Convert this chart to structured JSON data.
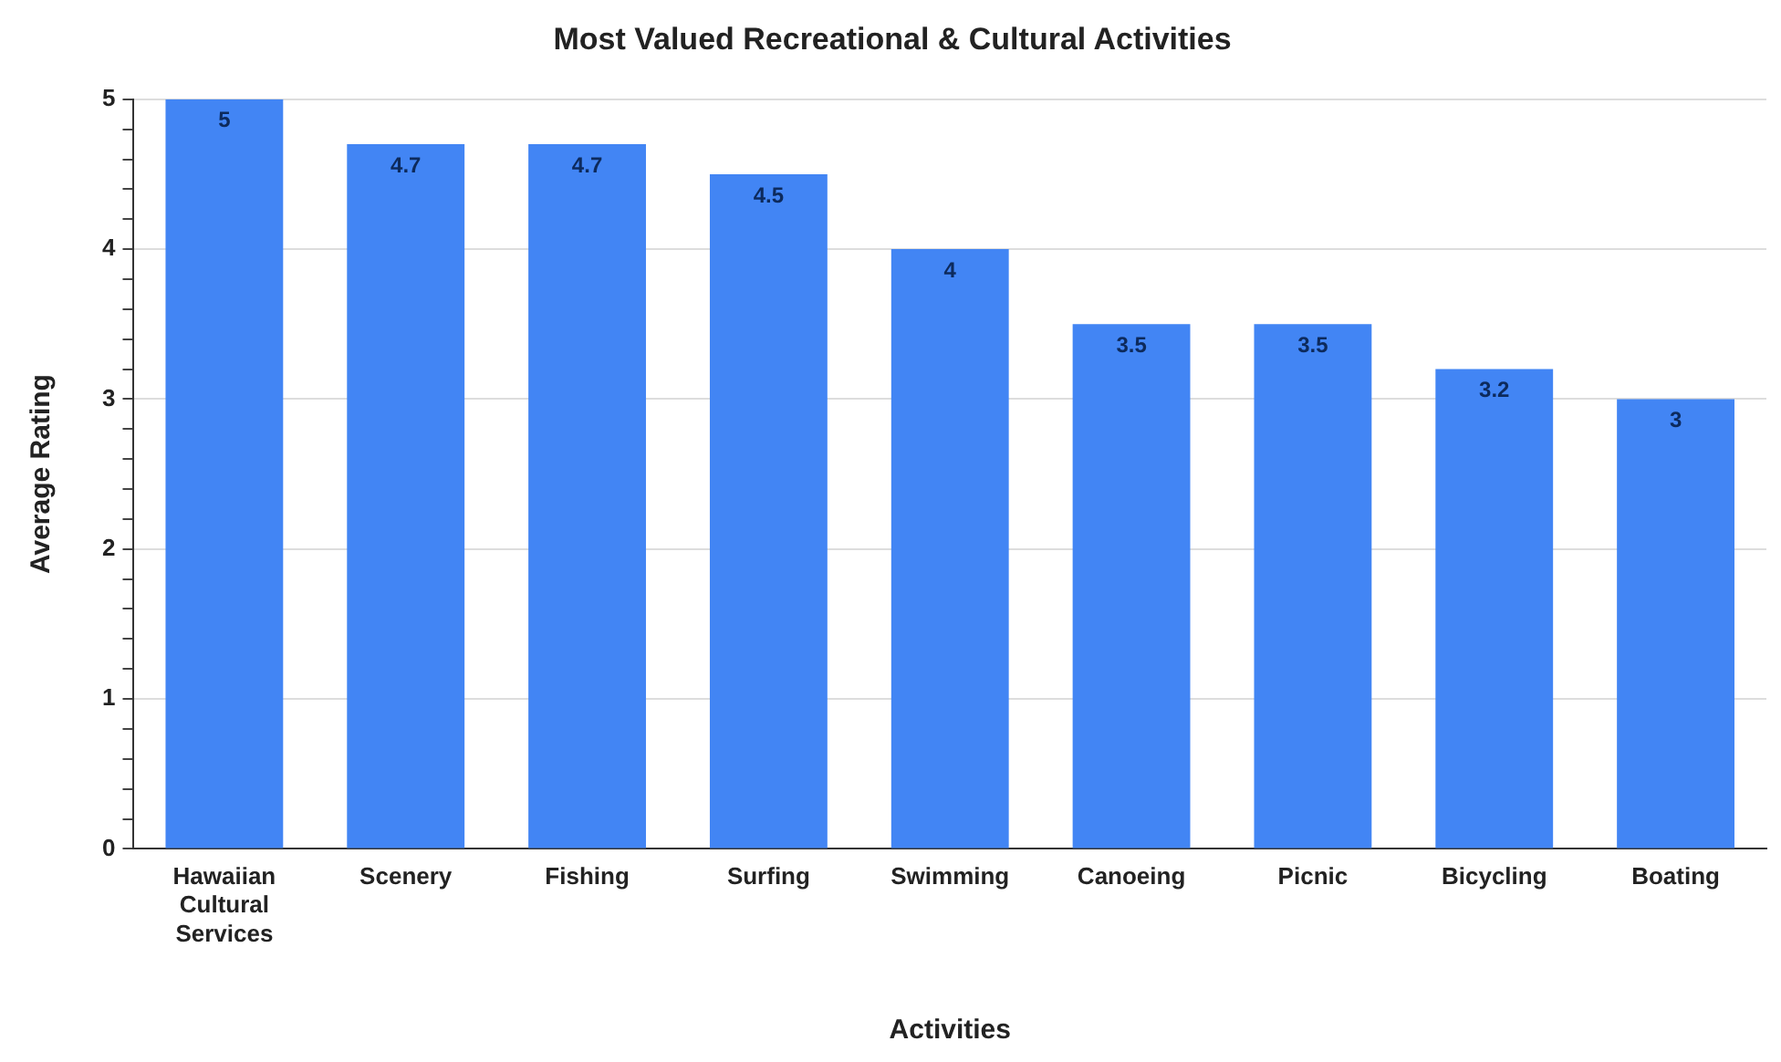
{
  "chart_data": {
    "type": "bar",
    "title": "Most Valued Recreational & Cultural Activities",
    "xlabel": "Activities",
    "ylabel": "Average Rating",
    "categories": [
      "Hawaiian Cultural Services",
      "Scenery",
      "Fishing",
      "Surfing",
      "Swimming",
      "Canoeing",
      "Picnic",
      "Bicycling",
      "Boating"
    ],
    "values": [
      5,
      4.7,
      4.7,
      4.5,
      4,
      3.5,
      3.5,
      3.2,
      3
    ],
    "color": "#4285f4",
    "ylim": [
      0,
      5
    ],
    "yticks": [
      0,
      {
        "value": 0.2,
        "label": null
      },
      {
        "value": 0.4,
        "label": null
      },
      {
        "value": 0.6,
        "label": null
      },
      {
        "value": 0.8,
        "label": null
      },
      1,
      {
        "value": 1.2,
        "label": null
      },
      {
        "value": 1.4,
        "label": null
      },
      {
        "value": 1.6,
        "label": null
      },
      {
        "value": 1.8,
        "label": null
      },
      2,
      {
        "value": 2.2,
        "label": null
      },
      {
        "value": 2.4,
        "label": null
      },
      {
        "value": 2.6,
        "label": null
      },
      {
        "value": 2.8,
        "label": null
      },
      3,
      {
        "value": 3.2,
        "label": null
      },
      {
        "value": 3.4,
        "label": null
      },
      {
        "value": 3.6,
        "label": null
      },
      {
        "value": 3.8,
        "label": null
      },
      4,
      {
        "value": 4.2,
        "label": null
      },
      {
        "value": 4.4,
        "label": null
      },
      {
        "value": 4.6,
        "label": null
      },
      {
        "value": 4.8,
        "label": null
      },
      5
    ],
    "grid": "y",
    "data_labels": true
  }
}
